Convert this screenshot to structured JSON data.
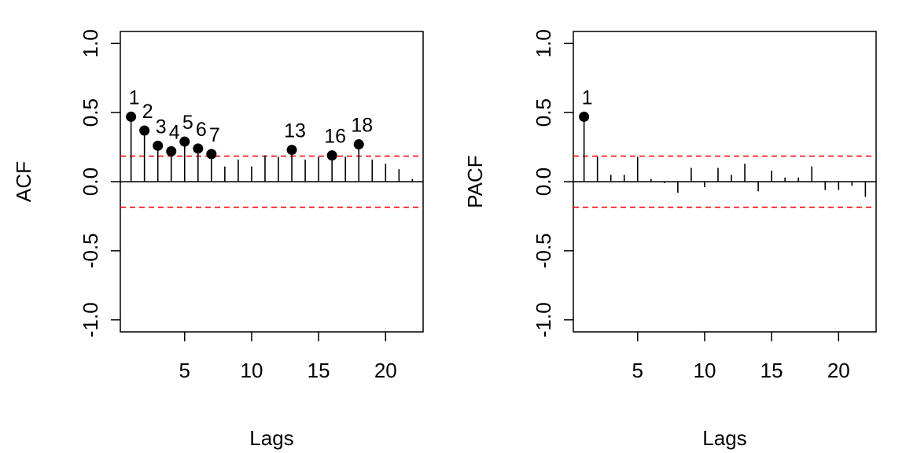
{
  "chart_data": [
    {
      "type": "stem",
      "ylabel": "ACF",
      "xlabel": "Lags",
      "ylim": [
        -1.0,
        1.0
      ],
      "xlim": [
        0.2,
        22.8
      ],
      "yticks": [
        -1.0,
        -0.5,
        0.0,
        0.5,
        1.0
      ],
      "ytick_labels": [
        "-1.0",
        "-0.5",
        "0.0",
        "0.5",
        "1.0"
      ],
      "xticks": [
        5,
        10,
        15,
        20
      ],
      "xtick_labels": [
        "5",
        "10",
        "15",
        "20"
      ],
      "confidence_bound": 0.185,
      "lags": [
        1,
        2,
        3,
        4,
        5,
        6,
        7,
        8,
        9,
        10,
        11,
        12,
        13,
        14,
        15,
        16,
        17,
        18,
        19,
        20,
        21,
        22
      ],
      "values": [
        0.47,
        0.37,
        0.26,
        0.22,
        0.29,
        0.24,
        0.2,
        0.11,
        0.16,
        0.11,
        0.19,
        0.18,
        0.23,
        0.16,
        0.18,
        0.19,
        0.18,
        0.27,
        0.16,
        0.13,
        0.09,
        0.02
      ],
      "significant_lags": [
        1,
        2,
        3,
        4,
        5,
        6,
        7,
        13,
        16,
        18
      ],
      "significant_labels": [
        "1",
        "2",
        "3",
        "4",
        "5",
        "6",
        "7",
        "13",
        "16",
        "18"
      ]
    },
    {
      "type": "stem",
      "ylabel": "PACF",
      "xlabel": "Lags",
      "ylim": [
        -1.0,
        1.0
      ],
      "xlim": [
        0.2,
        22.8
      ],
      "yticks": [
        -1.0,
        -0.5,
        0.0,
        0.5,
        1.0
      ],
      "ytick_labels": [
        "-1.0",
        "-0.5",
        "0.0",
        "0.5",
        "1.0"
      ],
      "xticks": [
        5,
        10,
        15,
        20
      ],
      "xtick_labels": [
        "5",
        "10",
        "15",
        "20"
      ],
      "confidence_bound": 0.185,
      "lags": [
        1,
        2,
        3,
        4,
        5,
        6,
        7,
        8,
        9,
        10,
        11,
        12,
        13,
        14,
        15,
        16,
        17,
        18,
        19,
        20,
        21,
        22
      ],
      "values": [
        0.47,
        0.18,
        0.05,
        0.05,
        0.18,
        0.02,
        -0.01,
        -0.08,
        0.1,
        -0.04,
        0.1,
        0.05,
        0.13,
        -0.07,
        0.08,
        0.03,
        0.03,
        0.11,
        -0.06,
        -0.06,
        -0.03,
        -0.11
      ],
      "significant_lags": [
        1
      ],
      "significant_labels": [
        "1"
      ]
    }
  ]
}
